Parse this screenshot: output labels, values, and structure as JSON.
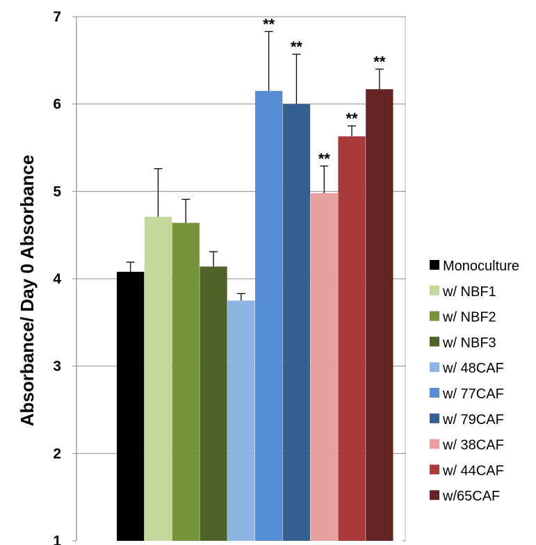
{
  "chart_data": {
    "type": "bar",
    "title": "",
    "xlabel": "",
    "ylabel": "Absorbance/ Day 0 Absorbance",
    "ylim": [
      1,
      7
    ],
    "yticks": [
      "1",
      "2",
      "3",
      "4",
      "5",
      "6",
      "7"
    ],
    "grid": true,
    "legend_position": "right",
    "categories": [
      "Monoculture",
      "w/ NBF1",
      "w/ NBF2",
      "w/ NBF3",
      "w/ 48CAF",
      "w/ 77CAF",
      "w/ 79CAF",
      "w/ 38CAF",
      "w/ 44CAF",
      "w/65CAF"
    ],
    "values": [
      4.08,
      4.71,
      4.64,
      4.14,
      3.75,
      6.15,
      6.0,
      4.98,
      5.63,
      6.17
    ],
    "errors": [
      0.11,
      0.55,
      0.27,
      0.17,
      0.08,
      0.68,
      0.57,
      0.31,
      0.12,
      0.23
    ],
    "significance": [
      "",
      "",
      "",
      "",
      "",
      "**",
      "**",
      "**",
      "**",
      "**"
    ],
    "colors": [
      "#000000",
      "#c4d79b",
      "#77933c",
      "#4f6228",
      "#8db4e2",
      "#558ed5",
      "#376092",
      "#e6a0a0",
      "#a93a3a",
      "#632423"
    ]
  }
}
